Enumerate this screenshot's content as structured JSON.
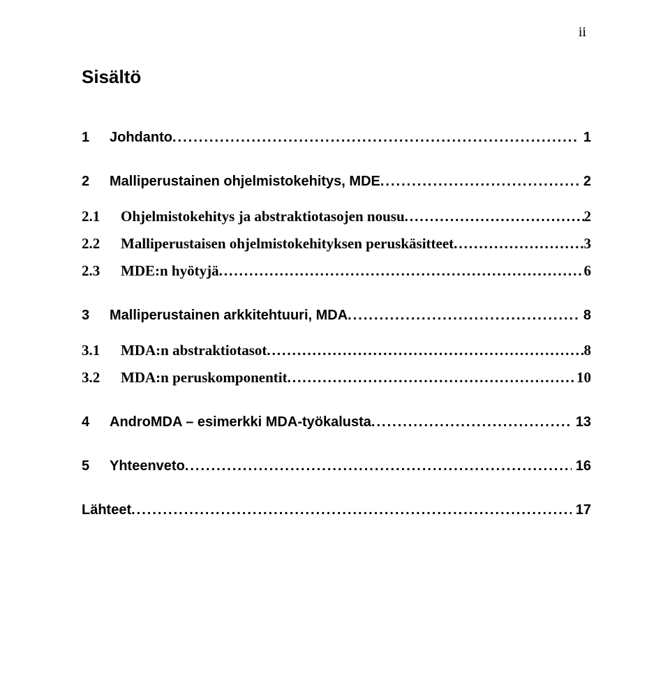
{
  "page_number_roman": "ii",
  "toc_title": "Sisältö",
  "entries": [
    {
      "level": 1,
      "num": "1",
      "title": "Johdanto",
      "page": "1"
    },
    {
      "level": 1,
      "num": "2",
      "title": "Malliperustainen ohjelmistokehitys, MDE",
      "page": "2"
    },
    {
      "level": 2,
      "num": "2.1",
      "title": "Ohjelmistokehitys ja abstraktiotasojen nousu",
      "page": "2"
    },
    {
      "level": 2,
      "num": "2.2",
      "title": "Malliperustaisen ohjelmistokehityksen peruskäsitteet",
      "page": "3"
    },
    {
      "level": 2,
      "num": "2.3",
      "title": "MDE:n hyötyjä",
      "page": "6"
    },
    {
      "level": 1,
      "num": "3",
      "title": "Malliperustainen arkkitehtuuri, MDA",
      "page": "8"
    },
    {
      "level": 2,
      "num": "3.1",
      "title": "MDA:n abstraktiotasot",
      "page": "8"
    },
    {
      "level": 2,
      "num": "3.2",
      "title": "MDA:n peruskomponentit",
      "page": "10"
    },
    {
      "level": 1,
      "num": "4",
      "title": "AndroMDA – esimerkki MDA-työkalusta",
      "page": "13"
    },
    {
      "level": 1,
      "num": "5",
      "title": "Yhteenveto",
      "page": "16"
    },
    {
      "level": 1,
      "num": "",
      "title": "Lähteet",
      "page": "17"
    }
  ],
  "dot_leader_l1": ".............................................................................................................................................",
  "dot_leader_l2": "............................................................................................................................................."
}
